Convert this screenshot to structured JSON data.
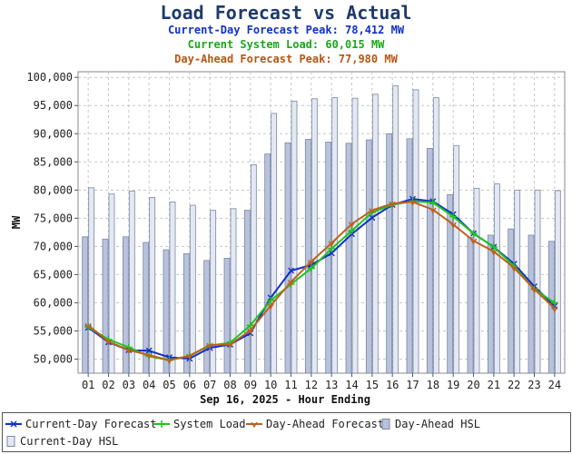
{
  "header": {
    "title": "Load Forecast vs Actual",
    "cd_peak_label": "Current-Day Forecast Peak:  78,412 MW",
    "sys_load_label": "Current System Load:  60,015 MW",
    "da_peak_label": "Day-Ahead Forecast Peak:  77,980 MW"
  },
  "colors": {
    "current_day_forecast": "#1030c8",
    "system_load": "#1fc41f",
    "day_ahead_forecast": "#c0601a",
    "day_ahead_hsl": "#b8c2dc",
    "current_day_hsl": "#e4e8f2"
  },
  "chart_data": {
    "type": "bar+line",
    "xlabel": "Sep 16, 2025 - Hour Ending",
    "ylabel": "MW",
    "ylim": [
      47500,
      101000
    ],
    "yticks": [
      50000,
      55000,
      60000,
      65000,
      70000,
      75000,
      80000,
      85000,
      90000,
      95000,
      100000
    ],
    "ytick_labels": [
      "50,000",
      "55,000",
      "60,000",
      "65,000",
      "70,000",
      "75,000",
      "80,000",
      "85,000",
      "90,000",
      "95,000",
      "100,000"
    ],
    "categories": [
      "01",
      "02",
      "03",
      "04",
      "05",
      "06",
      "07",
      "08",
      "09",
      "10",
      "11",
      "12",
      "13",
      "14",
      "15",
      "16",
      "17",
      "18",
      "19",
      "20",
      "21",
      "22",
      "23",
      "24"
    ],
    "grid": true,
    "legend_position": "bottom",
    "bars": [
      {
        "name": "Day-Ahead HSL",
        "values": [
          71700,
          71300,
          71700,
          70700,
          69400,
          68700,
          67500,
          67900,
          76400,
          86400,
          88400,
          89000,
          88500,
          88300,
          88900,
          90000,
          89100,
          87400,
          79200,
          71600,
          72000,
          73100,
          72000,
          70900
        ]
      },
      {
        "name": "Current-Day HSL",
        "values": [
          80400,
          79300,
          79800,
          78700,
          77900,
          77300,
          76400,
          76700,
          84500,
          93600,
          95800,
          96200,
          96400,
          96300,
          97000,
          98500,
          97800,
          96400,
          87900,
          80300,
          81100,
          80000,
          80000,
          79900
        ]
      }
    ],
    "lines": [
      {
        "name": "Current-Day Forecast",
        "values": [
          55600,
          53000,
          51600,
          51500,
          50300,
          50100,
          52000,
          52600,
          54600,
          60900,
          65700,
          66700,
          68800,
          72200,
          75100,
          77400,
          78400,
          78000,
          75700,
          72300,
          69900,
          66900,
          62900,
          59400
        ]
      },
      {
        "name": "System Load",
        "values": [
          55700,
          53500,
          52100,
          50500,
          49800,
          50600,
          52400,
          52900,
          56000,
          60400,
          63300,
          66100,
          69600,
          72800,
          76000,
          77400,
          78000,
          77800,
          75300,
          72300,
          69900,
          66500,
          62400,
          60000
        ]
      },
      {
        "name": "Day-Ahead Forecast",
        "values": [
          56000,
          53100,
          51600,
          50700,
          49800,
          50600,
          52500,
          52600,
          55100,
          59500,
          63700,
          67300,
          70600,
          74000,
          76400,
          77600,
          77900,
          76500,
          73900,
          71000,
          69100,
          66200,
          62400,
          59000
        ]
      }
    ],
    "legend": [
      "Current-Day Forecast",
      "System Load",
      "Day-Ahead Forecast",
      "Day-Ahead HSL",
      "Current-Day HSL"
    ]
  }
}
